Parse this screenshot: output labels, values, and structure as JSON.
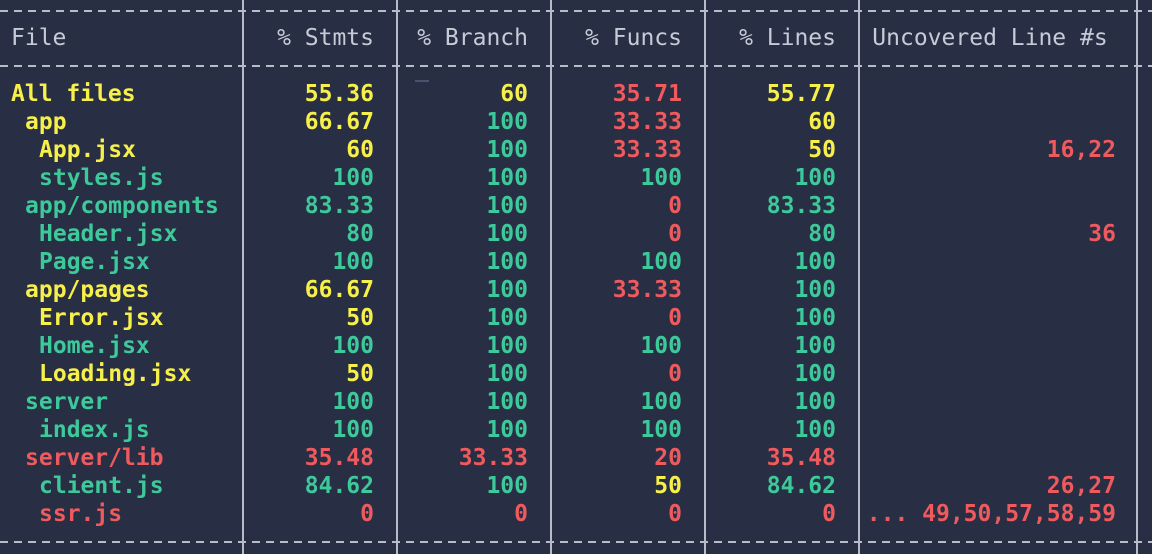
{
  "table": {
    "headers": [
      "File",
      "% Stmts",
      "% Branch",
      "% Funcs",
      "% Lines",
      "Uncovered Line #s"
    ],
    "rows": [
      {
        "file": "All files",
        "indent": 0,
        "stmts": "55.36",
        "branch": "60",
        "funcs": "35.71",
        "lines": "55.77",
        "uncovered": "",
        "colors": [
          "yellow",
          "yellow",
          "yellow",
          "red",
          "yellow",
          "red"
        ]
      },
      {
        "file": "app",
        "indent": 1,
        "stmts": "66.67",
        "branch": "100",
        "funcs": "33.33",
        "lines": "60",
        "uncovered": "",
        "colors": [
          "yellow",
          "yellow",
          "green",
          "red",
          "yellow",
          "red"
        ]
      },
      {
        "file": "App.jsx",
        "indent": 2,
        "stmts": "60",
        "branch": "100",
        "funcs": "33.33",
        "lines": "50",
        "uncovered": "16,22",
        "colors": [
          "yellow",
          "yellow",
          "green",
          "red",
          "yellow",
          "red"
        ]
      },
      {
        "file": "styles.js",
        "indent": 2,
        "stmts": "100",
        "branch": "100",
        "funcs": "100",
        "lines": "100",
        "uncovered": "",
        "colors": [
          "green",
          "green",
          "green",
          "green",
          "green",
          "red"
        ]
      },
      {
        "file": "app/components",
        "indent": 1,
        "stmts": "83.33",
        "branch": "100",
        "funcs": "0",
        "lines": "83.33",
        "uncovered": "",
        "colors": [
          "green",
          "green",
          "green",
          "red",
          "green",
          "red"
        ]
      },
      {
        "file": "Header.jsx",
        "indent": 2,
        "stmts": "80",
        "branch": "100",
        "funcs": "0",
        "lines": "80",
        "uncovered": "36",
        "colors": [
          "green",
          "green",
          "green",
          "red",
          "green",
          "red"
        ]
      },
      {
        "file": "Page.jsx",
        "indent": 2,
        "stmts": "100",
        "branch": "100",
        "funcs": "100",
        "lines": "100",
        "uncovered": "",
        "colors": [
          "green",
          "green",
          "green",
          "green",
          "green",
          "red"
        ]
      },
      {
        "file": "app/pages",
        "indent": 1,
        "stmts": "66.67",
        "branch": "100",
        "funcs": "33.33",
        "lines": "100",
        "uncovered": "",
        "colors": [
          "yellow",
          "yellow",
          "green",
          "red",
          "green",
          "red"
        ]
      },
      {
        "file": "Error.jsx",
        "indent": 2,
        "stmts": "50",
        "branch": "100",
        "funcs": "0",
        "lines": "100",
        "uncovered": "",
        "colors": [
          "yellow",
          "yellow",
          "green",
          "red",
          "green",
          "red"
        ]
      },
      {
        "file": "Home.jsx",
        "indent": 2,
        "stmts": "100",
        "branch": "100",
        "funcs": "100",
        "lines": "100",
        "uncovered": "",
        "colors": [
          "green",
          "green",
          "green",
          "green",
          "green",
          "red"
        ]
      },
      {
        "file": "Loading.jsx",
        "indent": 2,
        "stmts": "50",
        "branch": "100",
        "funcs": "0",
        "lines": "100",
        "uncovered": "",
        "colors": [
          "yellow",
          "yellow",
          "green",
          "red",
          "green",
          "red"
        ]
      },
      {
        "file": "server",
        "indent": 1,
        "stmts": "100",
        "branch": "100",
        "funcs": "100",
        "lines": "100",
        "uncovered": "",
        "colors": [
          "green",
          "green",
          "green",
          "green",
          "green",
          "red"
        ]
      },
      {
        "file": "index.js",
        "indent": 2,
        "stmts": "100",
        "branch": "100",
        "funcs": "100",
        "lines": "100",
        "uncovered": "",
        "colors": [
          "green",
          "green",
          "green",
          "green",
          "green",
          "red"
        ]
      },
      {
        "file": "server/lib",
        "indent": 1,
        "stmts": "35.48",
        "branch": "33.33",
        "funcs": "20",
        "lines": "35.48",
        "uncovered": "",
        "colors": [
          "red",
          "red",
          "red",
          "red",
          "red",
          "red"
        ]
      },
      {
        "file": "client.js",
        "indent": 2,
        "stmts": "84.62",
        "branch": "100",
        "funcs": "50",
        "lines": "84.62",
        "uncovered": "26,27",
        "colors": [
          "green",
          "green",
          "green",
          "yellow",
          "green",
          "red"
        ]
      },
      {
        "file": "ssr.js",
        "indent": 2,
        "stmts": "0",
        "branch": "0",
        "funcs": "0",
        "lines": "0",
        "uncovered": "... 49,50,57,58,59",
        "colors": [
          "red",
          "red",
          "red",
          "red",
          "red",
          "red"
        ]
      }
    ]
  },
  "colors": {
    "background": "#282f45",
    "green": "#3ec99a",
    "yellow": "#f7f04b",
    "red": "#ee5a5d",
    "text": "#c7cbd6",
    "border": "#b8bcc9"
  }
}
